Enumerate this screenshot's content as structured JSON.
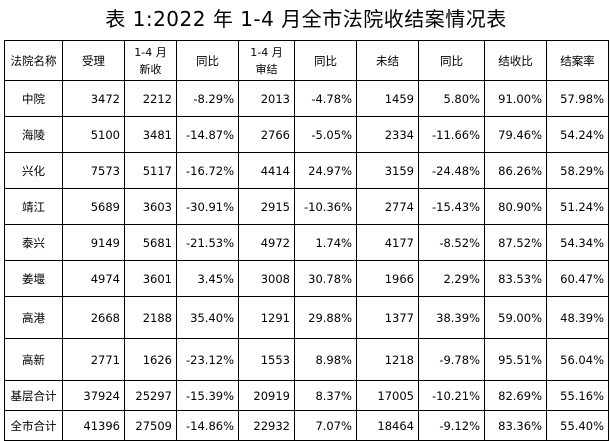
{
  "title": "表 1:2022 年 1-4 月全市法院收结案情况表",
  "headers": [
    "法院名称",
    "受理",
    "1-4 月\n新收",
    "同比",
    "1-4 月\n审结",
    "同比",
    "未结",
    "同比",
    "结收比",
    "结案率"
  ],
  "rows": [
    [
      "中院",
      "3472",
      "2212",
      "-8.29%",
      "2013",
      "-4.78%",
      "1459",
      "5.80%",
      "91.00%",
      "57.98%"
    ],
    [
      "海陵",
      "5100",
      "3481",
      "-14.87%",
      "2766",
      "-5.05%",
      "2334",
      "-11.66%",
      "79.46%",
      "54.24%"
    ],
    [
      "兴化",
      "7573",
      "5117",
      "-16.72%",
      "4414",
      "24.97%",
      "3159",
      "-24.48%",
      "86.26%",
      "58.29%"
    ],
    [
      "靖江",
      "5689",
      "3603",
      "-30.91%",
      "2915",
      "-10.36%",
      "2774",
      "-15.43%",
      "80.90%",
      "51.24%"
    ],
    [
      "泰兴",
      "9149",
      "5681",
      "-21.53%",
      "4972",
      "1.74%",
      "4177",
      "-8.52%",
      "87.52%",
      "54.34%"
    ],
    [
      "姜堰",
      "4974",
      "3601",
      "3.45%",
      "3008",
      "30.78%",
      "1966",
      "2.29%",
      "83.53%",
      "60.47%"
    ],
    [
      "高港",
      "2668",
      "2188",
      "35.40%",
      "1291",
      "29.88%",
      "1377",
      "38.39%",
      "59.00%",
      "48.39%"
    ],
    [
      "高新",
      "2771",
      "1626",
      "-23.12%",
      "1553",
      "8.98%",
      "1218",
      "-9.78%",
      "95.51%",
      "56.04%"
    ],
    [
      "基层合计",
      "37924",
      "25297",
      "-15.39%",
      "20919",
      "8.37%",
      "17005",
      "-10.21%",
      "82.69%",
      "55.16%"
    ],
    [
      "全市合计",
      "41396",
      "27509",
      "-14.86%",
      "22932",
      "7.07%",
      "18464",
      "-9.12%",
      "83.36%",
      "55.40%"
    ]
  ]
}
